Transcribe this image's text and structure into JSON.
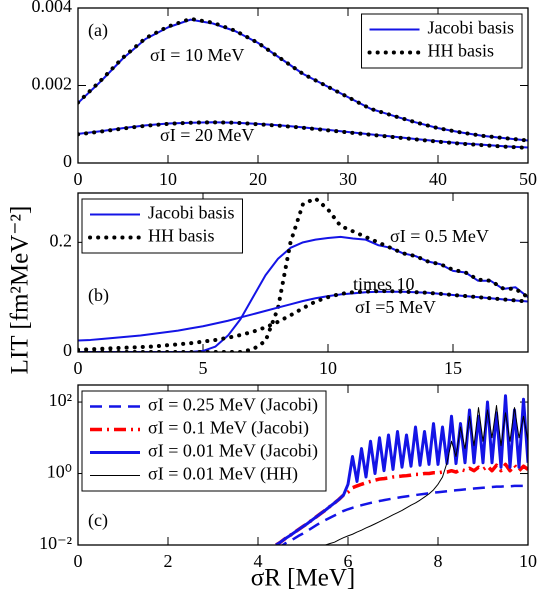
{
  "chart_data": [
    {
      "type": "line",
      "xlim": [
        0,
        50
      ],
      "ylim": [
        0,
        0.004
      ],
      "xticks": [
        0,
        10,
        20,
        30,
        40,
        50
      ],
      "yticks": [
        0,
        0.002,
        0.004
      ],
      "legend": "upper-right",
      "x": [
        0,
        2.5,
        5,
        7.5,
        10,
        12.5,
        15,
        17.5,
        20,
        22.5,
        25,
        27.5,
        30,
        32.5,
        35,
        37.5,
        40,
        42.5,
        45,
        47.5,
        50
      ],
      "series": [
        {
          "name": "Jacobi basis",
          "color": "#1414e6",
          "style": "solid",
          "values": [
            0.00155,
            0.0021,
            0.0027,
            0.0032,
            0.0035,
            0.0037,
            0.0036,
            0.0034,
            0.0031,
            0.0027,
            0.0023,
            0.002,
            0.0017,
            0.0014,
            0.00122,
            0.00105,
            0.0009,
            0.00079,
            0.0007,
            0.00064,
            0.00058
          ]
        },
        {
          "name": "HH basis",
          "color": "#000000",
          "style": "dotted",
          "values": [
            0.00156,
            0.00212,
            0.00272,
            0.00322,
            0.00352,
            0.00372,
            0.00362,
            0.00341,
            0.0031,
            0.0027,
            0.0023,
            0.002,
            0.0017,
            0.0014,
            0.00122,
            0.00105,
            0.0009,
            0.00079,
            0.0007,
            0.00064,
            0.00058
          ]
        },
        {
          "color": "#1414e6",
          "style": "solid",
          "values": [
            0.00075,
            0.00082,
            0.0009,
            0.00097,
            0.00102,
            0.00104,
            0.00105,
            0.00104,
            0.00101,
            0.00097,
            0.00092,
            0.00086,
            0.0008,
            0.00074,
            0.00068,
            0.00062,
            0.00056,
            0.00051,
            0.00047,
            0.00043,
            0.0004
          ]
        },
        {
          "color": "#000000",
          "style": "dotted",
          "values": [
            0.00074,
            0.00081,
            0.00089,
            0.00096,
            0.00101,
            0.00104,
            0.00105,
            0.00104,
            0.001,
            0.00096,
            0.00091,
            0.00085,
            0.00079,
            0.00073,
            0.00067,
            0.00061,
            0.00055,
            0.0005,
            0.00046,
            0.00042,
            0.00039
          ]
        }
      ],
      "annotations": [
        "(a)",
        "σI = 10 MeV",
        "σI = 20 MeV"
      ]
    },
    {
      "type": "line",
      "xlim": [
        0,
        18
      ],
      "ylim": [
        0,
        0.29
      ],
      "xticks": [
        0,
        5,
        10,
        15
      ],
      "yticks": [
        0,
        0.2
      ],
      "legend": "upper-left",
      "ylabel": "LIT [fm²MeV⁻²]",
      "x": [
        0,
        0.5,
        1,
        1.5,
        2,
        2.5,
        3,
        3.5,
        4,
        4.5,
        5,
        5.5,
        6,
        6.5,
        7,
        7.5,
        8,
        8.5,
        9,
        9.5,
        10,
        10.5,
        11,
        11.5,
        12,
        12.5,
        13,
        13.5,
        14,
        14.5,
        15,
        15.5,
        16,
        16.5,
        17,
        17.5,
        18
      ],
      "series": [
        {
          "name": "Jacobi basis",
          "color": "#1414e6",
          "style": "solid",
          "values": [
            0,
            0,
            0,
            0,
            0,
            0,
            0,
            0,
            0,
            0,
            0.002,
            0.01,
            0.03,
            0.06,
            0.1,
            0.14,
            0.17,
            0.19,
            0.2,
            0.205,
            0.208,
            0.21,
            0.207,
            0.205,
            0.195,
            0.19,
            0.18,
            0.175,
            0.165,
            0.16,
            0.148,
            0.145,
            0.13,
            0.13,
            0.115,
            0.118,
            0.1
          ]
        },
        {
          "name": "HH basis",
          "color": "#000000",
          "style": "dotted",
          "values": [
            0,
            0,
            0,
            0,
            0,
            0,
            0,
            0,
            0,
            0,
            0,
            0,
            0,
            0,
            0.005,
            0.02,
            0.08,
            0.2,
            0.27,
            0.28,
            0.26,
            0.23,
            0.22,
            0.21,
            0.2,
            0.19,
            0.18,
            0.175,
            0.165,
            0.16,
            0.15,
            0.145,
            0.132,
            0.13,
            0.116,
            0.115,
            0.1
          ]
        },
        {
          "color": "#1414e6",
          "style": "solid",
          "values": [
            0.021,
            0.022,
            0.024,
            0.026,
            0.028,
            0.03,
            0.033,
            0.036,
            0.039,
            0.043,
            0.047,
            0.052,
            0.057,
            0.063,
            0.069,
            0.075,
            0.081,
            0.087,
            0.093,
            0.098,
            0.102,
            0.105,
            0.107,
            0.109,
            0.11,
            0.11,
            0.11,
            0.109,
            0.108,
            0.106,
            0.104,
            0.102,
            0.1,
            0.098,
            0.096,
            0.094,
            0.092
          ]
        },
        {
          "color": "#000000",
          "style": "dotted",
          "values": [
            0.004,
            0.005,
            0.006,
            0.007,
            0.008,
            0.009,
            0.01,
            0.012,
            0.014,
            0.016,
            0.019,
            0.022,
            0.026,
            0.031,
            0.037,
            0.045,
            0.055,
            0.067,
            0.08,
            0.092,
            0.1,
            0.106,
            0.109,
            0.11,
            0.111,
            0.111,
            0.11,
            0.109,
            0.108,
            0.106,
            0.104,
            0.102,
            0.1,
            0.098,
            0.096,
            0.094,
            0.092
          ]
        }
      ],
      "annotations": [
        "(b)",
        "σI = 0.5 MeV",
        "times 10",
        "σI =5 MeV"
      ]
    },
    {
      "type": "line",
      "xlim": [
        0,
        10
      ],
      "ylim": [
        0.01,
        300
      ],
      "log_y": true,
      "xticks": [
        0,
        2,
        4,
        6,
        8,
        10
      ],
      "yticks": [
        {
          "value": 0.01,
          "label": "10⁻²"
        },
        {
          "value": 1,
          "label": "10⁰"
        },
        {
          "value": 100,
          "label": "10²"
        }
      ],
      "legend": "upper-left",
      "xlabel": "σR [MeV]",
      "x": [
        4.4,
        4.5,
        4.6,
        4.7,
        4.8,
        4.9,
        5,
        5.1,
        5.2,
        5.3,
        5.4,
        5.5,
        5.6,
        5.7,
        5.8,
        5.9,
        6,
        6.1,
        6.2,
        6.3,
        6.4,
        6.5,
        6.6,
        6.7,
        6.8,
        6.9,
        7,
        7.1,
        7.2,
        7.3,
        7.4,
        7.5,
        7.6,
        7.7,
        7.8,
        7.9,
        8,
        8.1,
        8.2,
        8.3,
        8.4,
        8.5,
        8.6,
        8.7,
        8.8,
        8.9,
        9,
        9.1,
        9.2,
        9.3,
        9.4,
        9.5,
        9.6,
        9.7,
        9.8,
        9.9,
        10
      ],
      "series": [
        {
          "name": "σI = 0.25 MeV (Jacobi)",
          "color": "#1414e6",
          "style": "dashed",
          "values": [
            0.008,
            0.009,
            0.011,
            0.013,
            0.015,
            0.018,
            0.021,
            0.025,
            0.03,
            0.036,
            0.043,
            0.05,
            0.058,
            0.067,
            0.077,
            0.09,
            0.1,
            0.11,
            0.12,
            0.13,
            0.14,
            0.15,
            0.16,
            0.17,
            0.18,
            0.19,
            0.2,
            0.21,
            0.22,
            0.23,
            0.24,
            0.25,
            0.26,
            0.27,
            0.28,
            0.29,
            0.3,
            0.31,
            0.32,
            0.33,
            0.34,
            0.35,
            0.36,
            0.37,
            0.38,
            0.39,
            0.4,
            0.41,
            0.42,
            0.43,
            0.43,
            0.44,
            0.44,
            0.45,
            0.45,
            0.45,
            0.45
          ]
        },
        {
          "name": "σI = 0.1 MeV (Jacobi)",
          "color": "#ff0000",
          "style": "dashdot",
          "values": [
            0.01,
            0.012,
            0.015,
            0.018,
            0.022,
            0.027,
            0.033,
            0.04,
            0.05,
            0.062,
            0.077,
            0.095,
            0.12,
            0.15,
            0.19,
            0.25,
            0.3,
            0.4,
            0.45,
            0.5,
            0.55,
            0.6,
            0.65,
            0.7,
            0.72,
            0.75,
            0.8,
            0.82,
            0.85,
            0.87,
            0.9,
            0.95,
            0.95,
            1,
            1,
            1.05,
            1.05,
            1.1,
            1.1,
            1.2,
            1.1,
            1.3,
            1.2,
            1.4,
            1.2,
            1.5,
            1.3,
            1.6,
            1.2,
            1.7,
            1.2,
            1.8,
            1.2,
            1.7,
            1.2,
            1.6,
            1.3
          ]
        },
        {
          "name": "σI = 0.01 MeV (Jacobi)",
          "color": "#1414e6",
          "style": "thick",
          "values": [
            0.01,
            0.012,
            0.015,
            0.018,
            0.022,
            0.027,
            0.033,
            0.04,
            0.05,
            0.062,
            0.077,
            0.095,
            0.12,
            0.15,
            0.19,
            0.25,
            0.5,
            3,
            0.6,
            5,
            0.8,
            8,
            1,
            10,
            1.2,
            12,
            1.3,
            15,
            1.5,
            12,
            1.6,
            20,
            1.7,
            15,
            1.8,
            25,
            1.8,
            20,
            1.9,
            40,
            1.9,
            25,
            2,
            60,
            2,
            40,
            2,
            100,
            2,
            50,
            1.5,
            150,
            1.5,
            60,
            1.5,
            120,
            2
          ]
        },
        {
          "name": "σI = 0.01 MeV (HH)",
          "color": "#000000",
          "style": "thin",
          "values": [
            null,
            null,
            null,
            null,
            null,
            null,
            null,
            null,
            null,
            null,
            null,
            0.01,
            0.011,
            0.012,
            0.014,
            0.016,
            0.018,
            0.02,
            0.023,
            0.026,
            0.03,
            0.034,
            0.039,
            0.045,
            0.052,
            0.06,
            0.07,
            0.08,
            0.093,
            0.11,
            0.13,
            0.15,
            0.18,
            0.22,
            0.27,
            0.35,
            0.5,
            0.8,
            2,
            8,
            3,
            20,
            5,
            40,
            6,
            70,
            8,
            60,
            10,
            80,
            6,
            50,
            8,
            70,
            10,
            40,
            8
          ]
        }
      ],
      "annotations": [
        "(c)"
      ]
    }
  ]
}
